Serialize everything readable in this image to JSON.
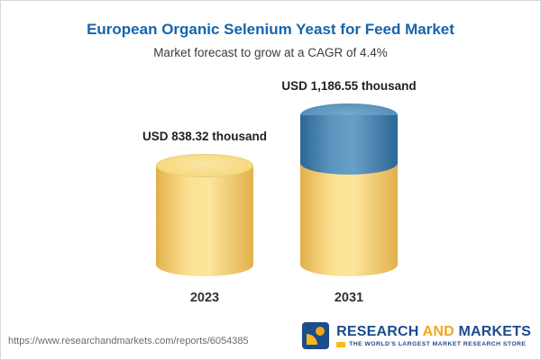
{
  "chart_data": {
    "type": "bar",
    "title": "European Organic Selenium Yeast for Feed Market",
    "subtitle": "Market forecast to grow at a CAGR of 4.4%",
    "categories": [
      "2023",
      "2031"
    ],
    "values": [
      838.32,
      1186.55
    ],
    "value_labels": [
      "USD 838.32 thousand",
      "USD 1,186.55 thousand"
    ],
    "unit": "USD thousand",
    "cagr": "4.4%",
    "legend_position": "none",
    "grid": false,
    "colors": {
      "bar_base": "#f6cf6d",
      "bar_growth_segment": "#3d7aab",
      "title": "#1565ab"
    }
  },
  "footer": {
    "url": "https://www.researchandmarkets.com/reports/6054385",
    "logo": {
      "part1": "RESEARCH",
      "part2": "AND",
      "part3": "MARKETS",
      "tagline": "THE WORLD'S LARGEST MARKET RESEARCH STORE"
    }
  }
}
